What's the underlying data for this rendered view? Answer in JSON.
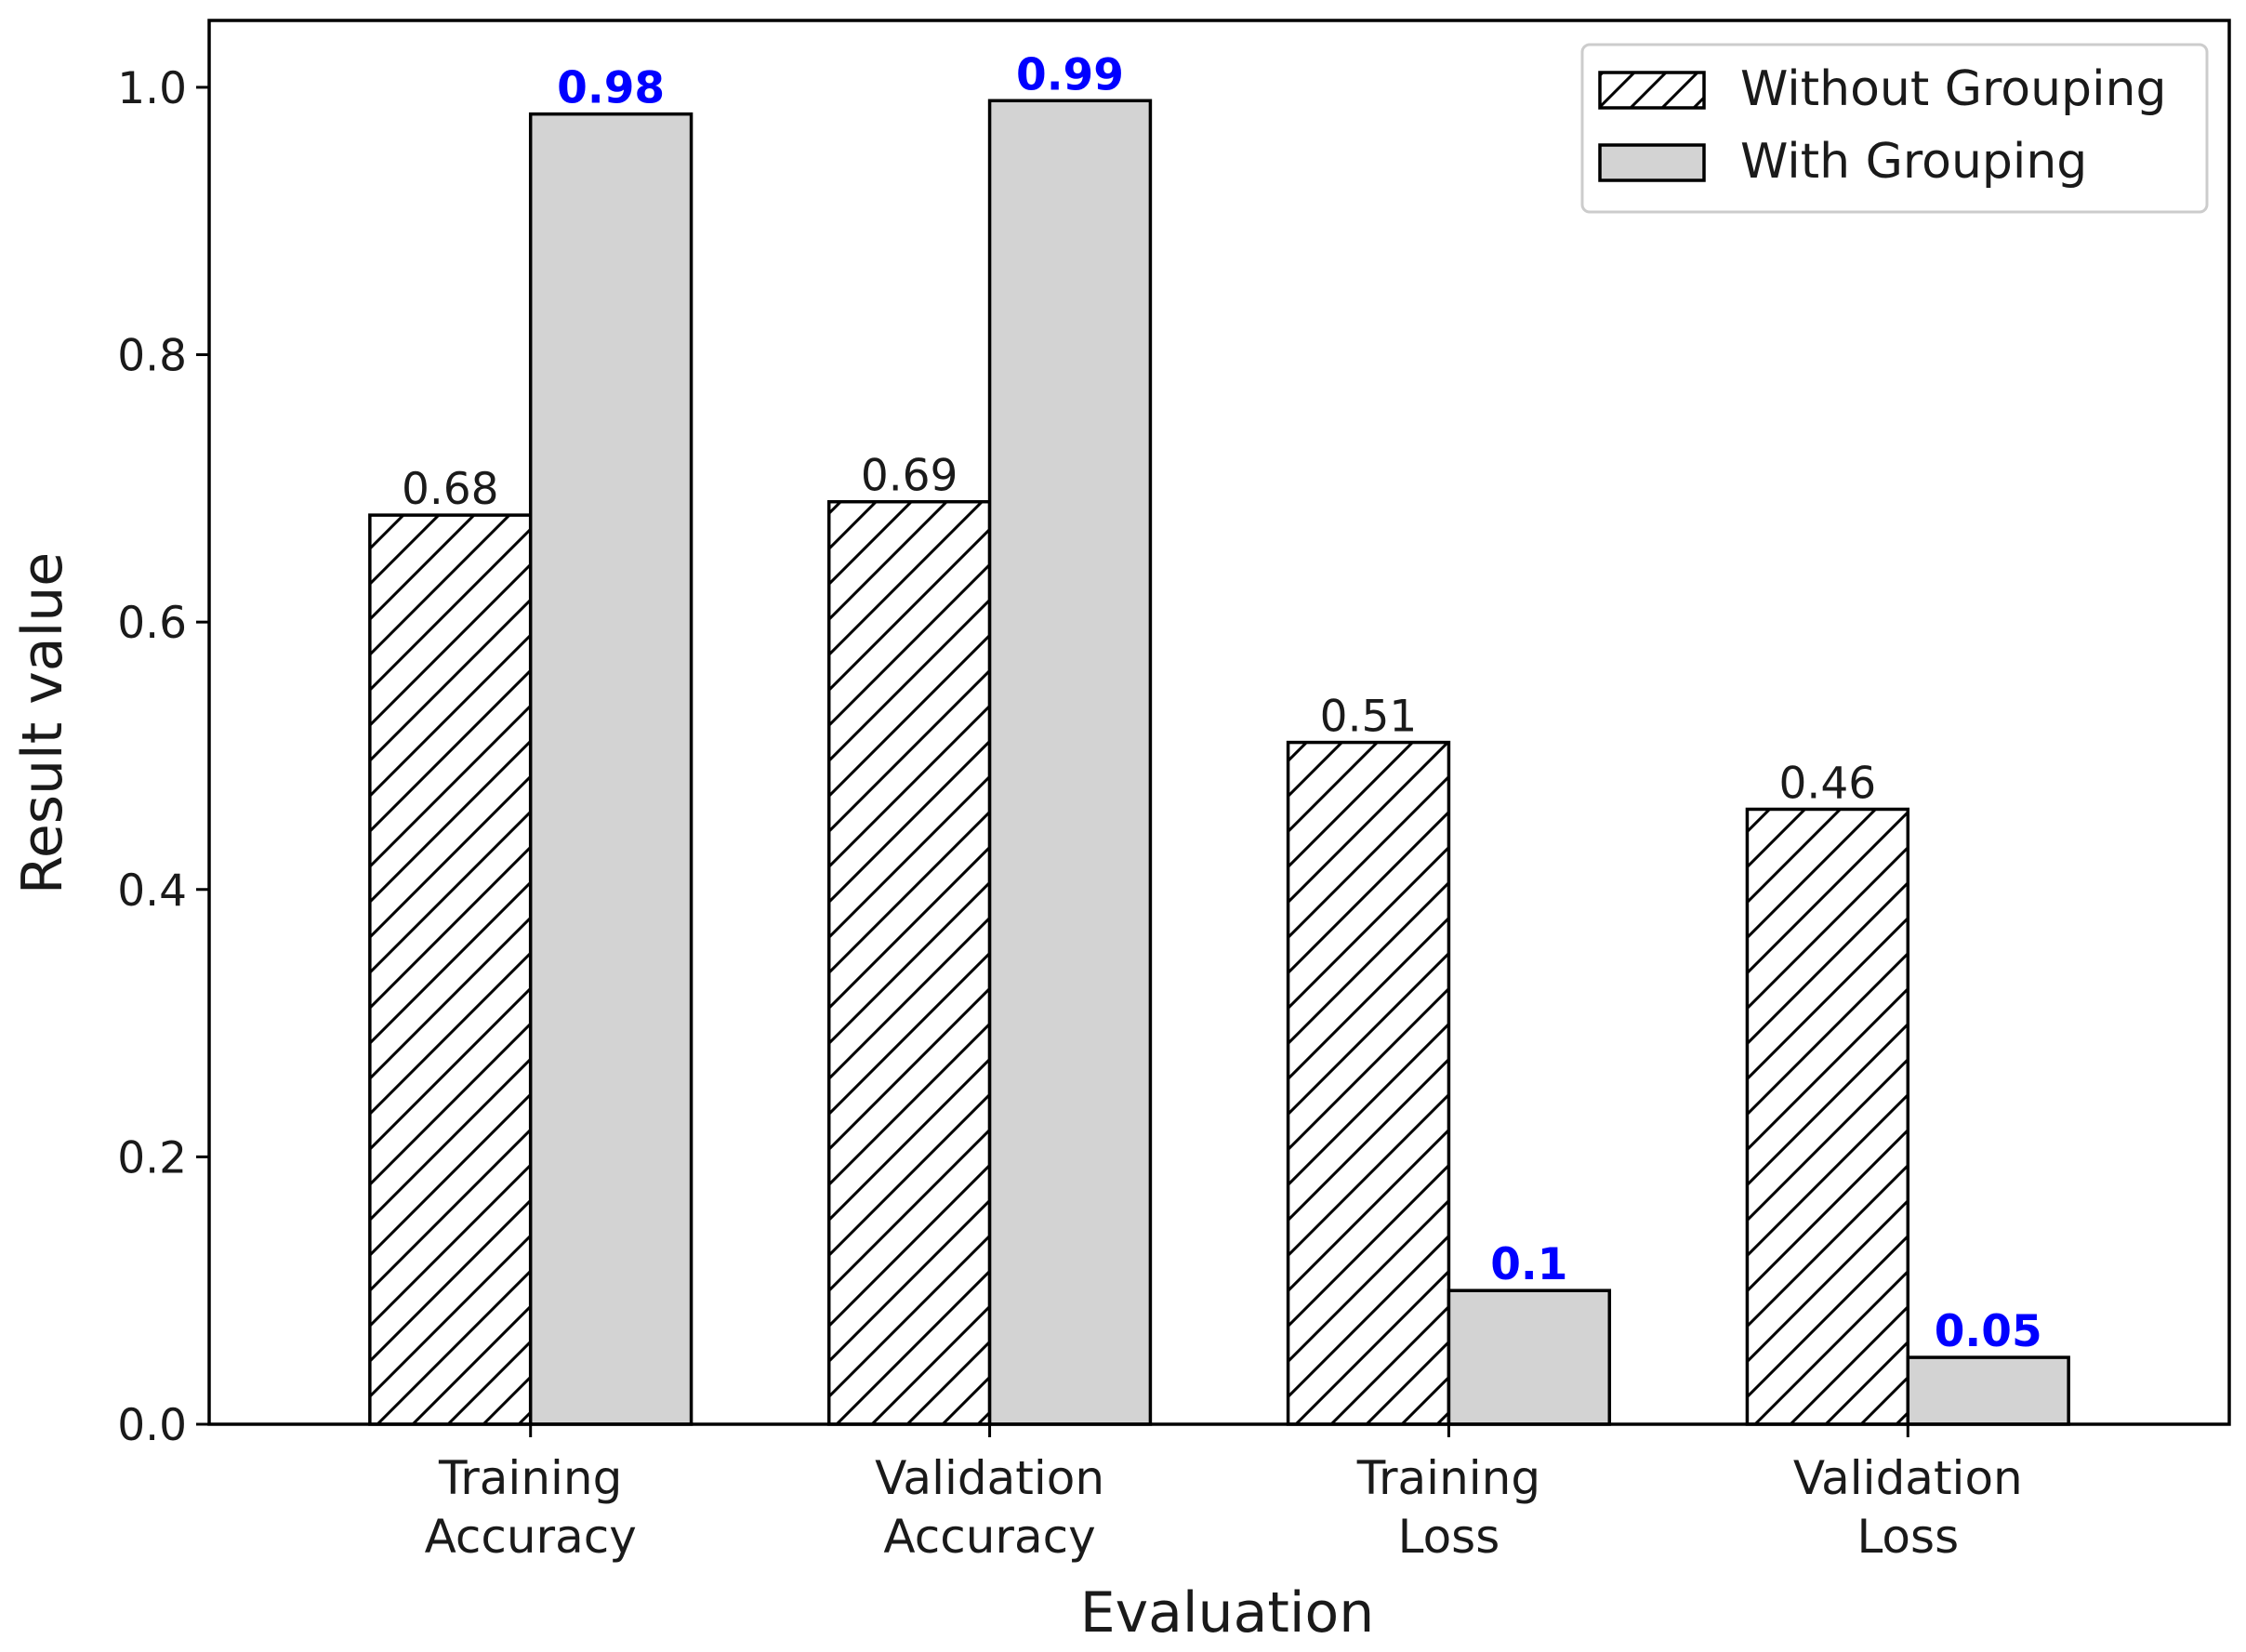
{
  "chart_data": {
    "type": "bar",
    "title": "",
    "xlabel": "Evaluation",
    "ylabel": "Result value",
    "ylim": [
      0,
      1.05
    ],
    "yticks": [
      "0.0",
      "0.2",
      "0.4",
      "0.6",
      "0.8",
      "1.0"
    ],
    "grid": false,
    "legend_position": "top-right",
    "categories": [
      [
        "Training",
        "Accuracy"
      ],
      [
        "Validation",
        "Accuracy"
      ],
      [
        "Training",
        "Loss"
      ],
      [
        "Validation",
        "Loss"
      ]
    ],
    "series": [
      {
        "name": "Without Grouping",
        "values": [
          0.68,
          0.69,
          0.51,
          0.46
        ],
        "labels": [
          "0.68",
          "0.69",
          "0.51",
          "0.46"
        ],
        "fill": "#ffffff",
        "hatch": "diagonal",
        "label_color": "#1a1a1a",
        "label_weight": "normal"
      },
      {
        "name": "With Grouping",
        "values": [
          0.98,
          0.99,
          0.1,
          0.05
        ],
        "labels": [
          "0.98",
          "0.99",
          "0.1",
          "0.05"
        ],
        "fill": "#d3d3d3",
        "hatch": "none",
        "label_color": "#0000ff",
        "label_weight": "bold"
      }
    ]
  }
}
